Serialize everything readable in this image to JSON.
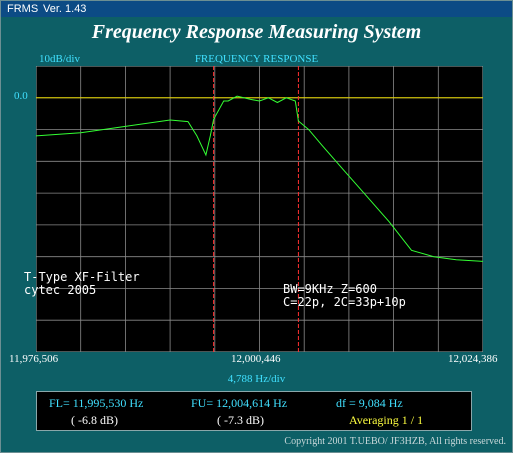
{
  "window": {
    "title": "FRMS",
    "version": "Ver. 1.43"
  },
  "app_title": "Frequency Response Measuring System",
  "chart_title": "FREQUENCY RESPONSE",
  "scale_label": "10dB/div",
  "ref_level": "0.0",
  "notes": {
    "left": [
      "T-Type XF-Filter",
      "cytec 2005"
    ],
    "right": [
      "BW=9KHz Z=600",
      "C=22p, 2C=33p+10p"
    ]
  },
  "x_axis": {
    "start": "11,976,506",
    "center": "12,000,446",
    "end": "12,024,386",
    "per_div": "4,788  Hz/div"
  },
  "readout": {
    "fl": "FL= 11,995,530  Hz",
    "fl_db": "( -6.8 dB)",
    "fu": "FU= 12,004,614  Hz",
    "fu_db": "( -7.3 dB)",
    "df": "df = 9,084  Hz",
    "averaging": "Averaging  1 / 1"
  },
  "copyright": "Copyright 2001 T.UEBO/ JF3HZB, All rights reserved.",
  "colors": {
    "trace": "#33ff33",
    "reference": "#e8d800",
    "marker": "#ff3030",
    "grid": "#8a8a8a",
    "text_cyan": "#40e0ff",
    "averaging": "#ffff40"
  },
  "chart_data": {
    "type": "line",
    "x_range": [
      11976506,
      12024386
    ],
    "y_range": [
      -80,
      10
    ],
    "y_units": "dB",
    "reference_level": 0,
    "markers": [
      11995530,
      12004614
    ],
    "series": [
      {
        "x": [
          11976506,
          11981294,
          11986082,
          11990870,
          11992785,
          11993742,
          11994700,
          11995179,
          11995530,
          11996615,
          11997094,
          11998051,
          11999489,
          12000446,
          12001403,
          12002361,
          12003318,
          12004276,
          12004614,
          12005712,
          12007148,
          12009542,
          12011936,
          12014330,
          12016724,
          12019118,
          12021512,
          12024386
        ],
        "y": [
          -12,
          -11,
          -9,
          -7,
          -7.5,
          -12,
          -18,
          -12,
          -6.8,
          -1,
          -1,
          0.5,
          -0.5,
          -1,
          0,
          -1.5,
          0,
          -1,
          -7.3,
          -10,
          -15,
          -23,
          -31,
          -39,
          -48,
          -50,
          -51,
          -51.5
        ]
      }
    ]
  }
}
